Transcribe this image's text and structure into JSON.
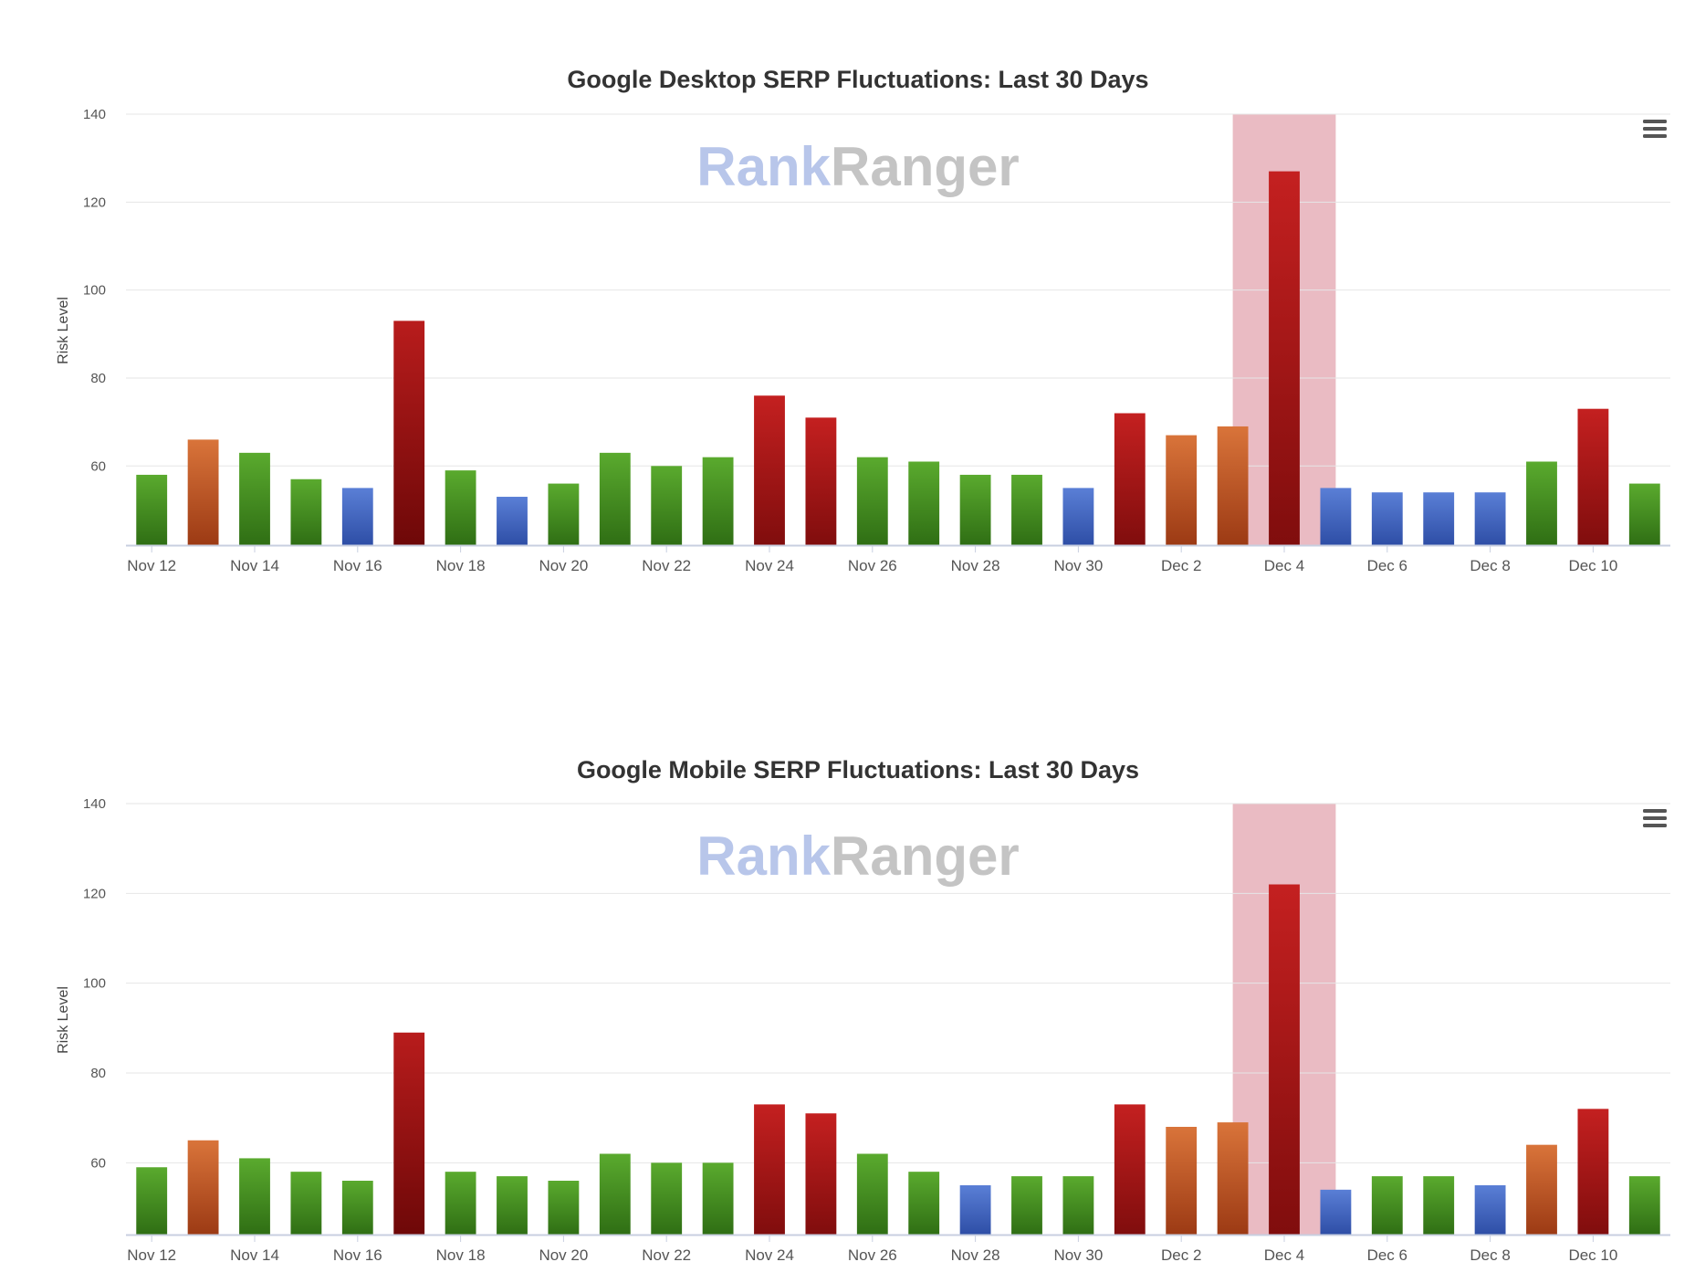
{
  "colors": {
    "green": "#4c9a2a",
    "orange": "#c8642a",
    "red": "#b31b1b",
    "blue": "#4a6cc4",
    "highlight": "#e8b4bd",
    "grid": "#e6e6e6"
  },
  "watermark": {
    "part1": "Rank",
    "part2": "Ranger"
  },
  "chart_data": [
    {
      "type": "bar",
      "title": "Google Desktop SERP Fluctuations: Last 30 Days",
      "ylabel": "Risk Level",
      "xlabel": "",
      "ylim": [
        42,
        140
      ],
      "yticks": [
        "60",
        "80",
        "100",
        "120",
        "140"
      ],
      "categories": [
        "Nov 12",
        "Nov 13",
        "Nov 14",
        "Nov 15",
        "Nov 16",
        "Nov 17",
        "Nov 18",
        "Nov 19",
        "Nov 20",
        "Nov 21",
        "Nov 22",
        "Nov 23",
        "Nov 24",
        "Nov 25",
        "Nov 26",
        "Nov 27",
        "Nov 28",
        "Nov 29",
        "Nov 30",
        "Dec 1",
        "Dec 2",
        "Dec 3",
        "Dec 4",
        "Dec 5",
        "Dec 6",
        "Dec 7",
        "Dec 8",
        "Dec 9",
        "Dec 10",
        "Dec 11"
      ],
      "xtick_labels": [
        "Nov 12",
        "Nov 14",
        "Nov 16",
        "Nov 18",
        "Nov 20",
        "Nov 22",
        "Nov 24",
        "Nov 26",
        "Nov 28",
        "Nov 30",
        "Dec 2",
        "Dec 4",
        "Dec 6",
        "Dec 8",
        "Dec 10"
      ],
      "values": [
        58,
        66,
        63,
        57,
        55,
        93,
        59,
        53,
        56,
        63,
        60,
        62,
        76,
        71,
        62,
        61,
        58,
        58,
        55,
        72,
        67,
        69,
        127,
        55,
        54,
        54,
        54,
        61,
        73,
        56
      ],
      "levels": [
        "green",
        "orange",
        "green",
        "green",
        "blue",
        "darkred",
        "green",
        "blue",
        "green",
        "green",
        "green",
        "green",
        "red",
        "red",
        "green",
        "green",
        "green",
        "green",
        "blue",
        "red",
        "orange",
        "orange",
        "red",
        "blue",
        "blue",
        "blue",
        "blue",
        "green",
        "red",
        "green"
      ],
      "highlight_range": [
        "Dec 3",
        "Dec 5"
      ]
    },
    {
      "type": "bar",
      "title": "Google Mobile SERP Fluctuations: Last 30 Days",
      "ylabel": "Risk Level",
      "xlabel": "",
      "ylim": [
        44,
        140
      ],
      "yticks": [
        "60",
        "80",
        "100",
        "120",
        "140"
      ],
      "categories": [
        "Nov 12",
        "Nov 13",
        "Nov 14",
        "Nov 15",
        "Nov 16",
        "Nov 17",
        "Nov 18",
        "Nov 19",
        "Nov 20",
        "Nov 21",
        "Nov 22",
        "Nov 23",
        "Nov 24",
        "Nov 25",
        "Nov 26",
        "Nov 27",
        "Nov 28",
        "Nov 29",
        "Nov 30",
        "Dec 1",
        "Dec 2",
        "Dec 3",
        "Dec 4",
        "Dec 5",
        "Dec 6",
        "Dec 7",
        "Dec 8",
        "Dec 9",
        "Dec 10",
        "Dec 11"
      ],
      "xtick_labels": [
        "Nov 12",
        "Nov 14",
        "Nov 16",
        "Nov 18",
        "Nov 20",
        "Nov 22",
        "Nov 24",
        "Nov 26",
        "Nov 28",
        "Nov 30",
        "Dec 2",
        "Dec 4",
        "Dec 6",
        "Dec 8",
        "Dec 10"
      ],
      "values": [
        59,
        65,
        61,
        58,
        56,
        89,
        58,
        57,
        56,
        62,
        60,
        60,
        73,
        71,
        62,
        58,
        55,
        57,
        57,
        73,
        68,
        69,
        122,
        54,
        57,
        57,
        55,
        64,
        72,
        57
      ],
      "levels": [
        "green",
        "orange",
        "green",
        "green",
        "green",
        "darkred",
        "green",
        "green",
        "green",
        "green",
        "green",
        "green",
        "red",
        "red",
        "green",
        "green",
        "blue",
        "green",
        "green",
        "red",
        "orange",
        "orange",
        "red",
        "blue",
        "green",
        "green",
        "blue",
        "orange",
        "red",
        "green"
      ],
      "highlight_range": [
        "Dec 3",
        "Dec 5"
      ]
    }
  ]
}
